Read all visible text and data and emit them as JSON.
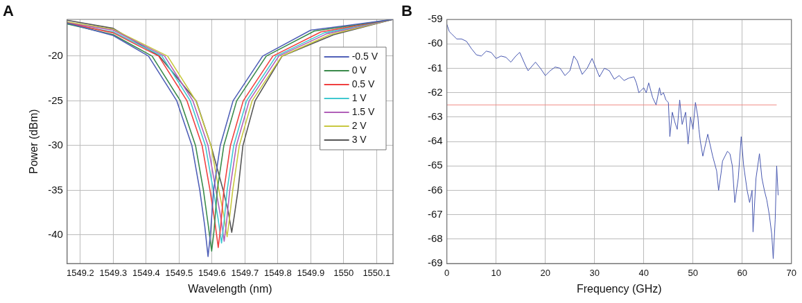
{
  "chart_data": [
    {
      "type": "line",
      "annotations": [
        "A"
      ],
      "xlabel": "Wavelength (nm)",
      "ylabel": "Power (dBm)",
      "xlim": [
        1549.16,
        1550.15
      ],
      "ylim": [
        -43.2,
        -15.9
      ],
      "xticks": [
        1549.2,
        1549.3,
        1549.4,
        1549.5,
        1549.6,
        1549.7,
        1549.8,
        1549.9,
        1550,
        1550.1
      ],
      "yticks": [
        -40,
        -35,
        -30,
        -25,
        -20
      ],
      "grid": true,
      "legend": "top right",
      "line_style": "solid",
      "marker": "none",
      "series": [
        {
          "name": "-0.5 V",
          "color": "#5060b8",
          "x": [
            1549.16,
            1549.3,
            1549.407,
            1549.493,
            1549.539,
            1549.563,
            1549.578,
            1549.588,
            1549.595,
            1549.605,
            1549.625,
            1549.664,
            1549.754,
            1549.9,
            1550.15
          ],
          "values": [
            -16.3,
            -17.7,
            -20,
            -25,
            -30,
            -35,
            -39,
            -42.4,
            -40,
            -35,
            -30,
            -25,
            -20,
            -17.1,
            -15.9
          ]
        },
        {
          "name": "0 V",
          "color": "#3a8a4a",
          "x": [
            1549.16,
            1549.3,
            1549.418,
            1549.504,
            1549.55,
            1549.574,
            1549.589,
            1549.599,
            1549.606,
            1549.616,
            1549.636,
            1549.675,
            1549.765,
            1549.911,
            1550.15
          ],
          "values": [
            -16.4,
            -17.6,
            -20,
            -25,
            -30,
            -35,
            -39,
            -41.8,
            -39.6,
            -35,
            -30,
            -25,
            -20,
            -17.2,
            -15.9
          ]
        },
        {
          "name": "0.5 V",
          "color": "#f04040",
          "x": [
            1549.16,
            1549.3,
            1549.438,
            1549.524,
            1549.57,
            1549.594,
            1549.609,
            1549.619,
            1549.626,
            1549.636,
            1549.656,
            1549.695,
            1549.785,
            1549.931,
            1550.15
          ],
          "values": [
            -16.3,
            -17.4,
            -20,
            -25,
            -30,
            -35,
            -38.6,
            -41.4,
            -39.2,
            -35,
            -30,
            -25,
            -20,
            -17.3,
            -15.9
          ]
        },
        {
          "name": "1 V",
          "color": "#40c8d0",
          "x": [
            1549.16,
            1549.3,
            1549.448,
            1549.534,
            1549.58,
            1549.604,
            1549.619,
            1549.629,
            1549.636,
            1549.646,
            1549.666,
            1549.705,
            1549.795,
            1549.941,
            1550.15
          ],
          "values": [
            -16.4,
            -17.3,
            -20,
            -25,
            -30,
            -35,
            -38.3,
            -40.9,
            -38.8,
            -35,
            -30,
            -25,
            -20,
            -17.4,
            -15.9
          ]
        },
        {
          "name": "1.5 V",
          "color": "#b060b8",
          "x": [
            1549.16,
            1549.3,
            1549.456,
            1549.542,
            1549.588,
            1549.612,
            1549.627,
            1549.637,
            1549.644,
            1549.654,
            1549.674,
            1549.713,
            1549.803,
            1549.949,
            1550.15
          ],
          "values": [
            -16.3,
            -17.1,
            -20,
            -25,
            -30,
            -35,
            -38.1,
            -40.7,
            -38.6,
            -35,
            -30,
            -25,
            -20,
            -17.5,
            -15.9
          ]
        },
        {
          "name": "2 V",
          "color": "#c8c840",
          "x": [
            1549.16,
            1549.3,
            1549.465,
            1549.551,
            1549.597,
            1549.621,
            1549.636,
            1549.646,
            1549.653,
            1549.663,
            1549.683,
            1549.722,
            1549.812,
            1549.958,
            1550.15
          ],
          "values": [
            -16.2,
            -17,
            -20,
            -25,
            -30,
            -35,
            -37.8,
            -40.2,
            -38.2,
            -35,
            -30,
            -25,
            -20,
            -17.6,
            -15.9
          ]
        },
        {
          "name": "3 V",
          "color": "#555555",
          "x": [
            1549.16,
            1549.3,
            1549.44,
            1549.552,
            1549.597,
            1549.634,
            1549.65,
            1549.66,
            1549.668,
            1549.679,
            1549.694,
            1549.731,
            1549.813,
            1549.97,
            1550.15
          ],
          "values": [
            -16,
            -16.9,
            -20,
            -25,
            -30,
            -35,
            -37.5,
            -39.7,
            -37.8,
            -35,
            -30,
            -25,
            -20,
            -17.6,
            -15.9
          ]
        }
      ]
    },
    {
      "type": "line",
      "annotations": [
        "B"
      ],
      "xlabel": "Frequency (GHz)",
      "xlim": [
        0,
        70
      ],
      "ylim": [
        -69,
        -59
      ],
      "xticks": [
        0,
        10,
        20,
        30,
        40,
        50,
        60,
        70
      ],
      "yticks": [
        -69,
        -68,
        -67,
        -66,
        -65,
        -64,
        -63,
        -62,
        -61,
        -60,
        -59
      ],
      "grid": true,
      "legend": false,
      "line_style": "solid",
      "marker": "none",
      "series": [
        {
          "color": "#4858b0",
          "x": [
            0,
            0.5,
            1,
            2,
            3,
            4,
            5,
            6,
            7,
            8,
            9,
            10,
            11,
            12,
            13,
            14,
            14.8,
            16,
            16.5,
            18,
            19,
            20,
            21,
            22,
            23,
            24,
            25,
            25.8,
            26.5,
            27,
            27.5,
            28.5,
            29.5,
            30.5,
            31,
            32,
            33,
            34,
            35,
            36,
            37,
            38,
            38.5,
            39,
            40,
            40.5,
            41,
            41.8,
            42.5,
            43.2,
            43.5,
            44,
            44.5,
            45,
            45.3,
            45.8,
            46.3,
            46.8,
            47.3,
            47.8,
            48.5,
            49,
            49.5,
            50,
            50.5,
            51,
            51.2,
            51.5,
            52,
            53,
            54,
            54.8,
            55.2,
            55.7,
            56,
            57,
            57.5,
            58,
            58.5,
            59.2,
            59.8,
            60.3,
            61,
            61.5,
            62,
            62.2,
            62.8,
            63.5,
            64,
            64.5,
            65,
            65.5,
            66,
            66.3,
            66.7,
            67,
            67.3
          ],
          "values": [
            -59.2,
            -59.5,
            -59.6,
            -59.8,
            -59.8,
            -59.9,
            -60.2,
            -60.45,
            -60.5,
            -60.3,
            -60.35,
            -60.6,
            -60.5,
            -60.55,
            -60.75,
            -60.5,
            -60.35,
            -60.9,
            -61.1,
            -60.75,
            -61,
            -61.3,
            -61.1,
            -60.95,
            -61,
            -61.3,
            -61.1,
            -60.5,
            -60.7,
            -61,
            -61.25,
            -61,
            -60.6,
            -61.1,
            -61.35,
            -61,
            -61.1,
            -61.45,
            -61.3,
            -61.5,
            -61.4,
            -61.35,
            -61.6,
            -62,
            -61.8,
            -62,
            -61.6,
            -62.2,
            -62.5,
            -61.8,
            -62.1,
            -62,
            -62.3,
            -62.4,
            -63.8,
            -62.8,
            -63.2,
            -63.5,
            -62.3,
            -63.3,
            -62.8,
            -64.1,
            -63,
            -63.5,
            -62.4,
            -63,
            -63.5,
            -64,
            -64.6,
            -63.7,
            -64.6,
            -65.2,
            -66,
            -65.3,
            -64.8,
            -64.4,
            -64.5,
            -65,
            -66.5,
            -65.5,
            -63.8,
            -65,
            -66,
            -66.5,
            -66,
            -67.7,
            -65.5,
            -64.5,
            -65.5,
            -66,
            -66.4,
            -67,
            -67.8,
            -68.8,
            -67.2,
            -65,
            -66.2
          ]
        },
        {
          "color": "#f08c84",
          "x": [
            0,
            67
          ],
          "values": [
            -62.5,
            -62.5
          ]
        }
      ]
    }
  ]
}
